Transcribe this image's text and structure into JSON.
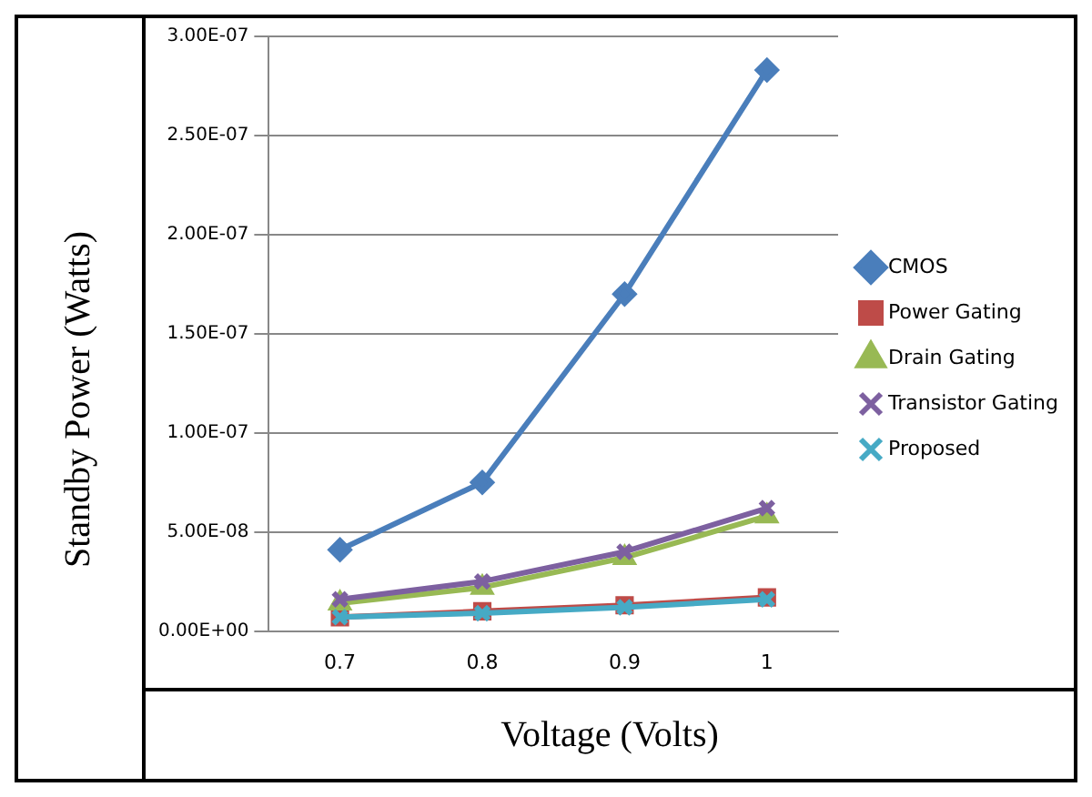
{
  "chart_data": {
    "type": "line",
    "xlabel": "Voltage (Volts)",
    "ylabel": "Standby Power (Watts)",
    "categories": [
      "0.7",
      "0.8",
      "0.9",
      "1"
    ],
    "series": [
      {
        "name": "CMOS",
        "color": "#4a7ebb",
        "marker": "diamond",
        "values": [
          4.1e-08,
          7.5e-08,
          1.7e-07,
          2.83e-07
        ]
      },
      {
        "name": "Power Gating",
        "color": "#be4b48",
        "marker": "square",
        "values": [
          7e-09,
          1e-08,
          1.3e-08,
          1.7e-08
        ]
      },
      {
        "name": "Drain Gating",
        "color": "#98b954",
        "marker": "triangle",
        "values": [
          1.4e-08,
          2.2e-08,
          3.7e-08,
          5.8e-08
        ]
      },
      {
        "name": "Transistor Gating",
        "color": "#7d60a0",
        "marker": "cross",
        "values": [
          1.6e-08,
          2.5e-08,
          4e-08,
          6.2e-08
        ]
      },
      {
        "name": "Proposed",
        "color": "#46aac5",
        "marker": "cross",
        "values": [
          7e-09,
          9e-09,
          1.2e-08,
          1.6e-08
        ]
      }
    ],
    "ylim": [
      0,
      3e-07
    ],
    "yticks": [
      {
        "value": 0,
        "label": "0.00E+00"
      },
      {
        "value": 5e-08,
        "label": "5.00E-08"
      },
      {
        "value": 1e-07,
        "label": "1.00E-07"
      },
      {
        "value": 1.5e-07,
        "label": "1.50E-07"
      },
      {
        "value": 2e-07,
        "label": "2.00E-07"
      },
      {
        "value": 2.5e-07,
        "label": "2.50E-07"
      },
      {
        "value": 3e-07,
        "label": "3.00E-07"
      }
    ],
    "grid": "y",
    "legend": "right"
  }
}
